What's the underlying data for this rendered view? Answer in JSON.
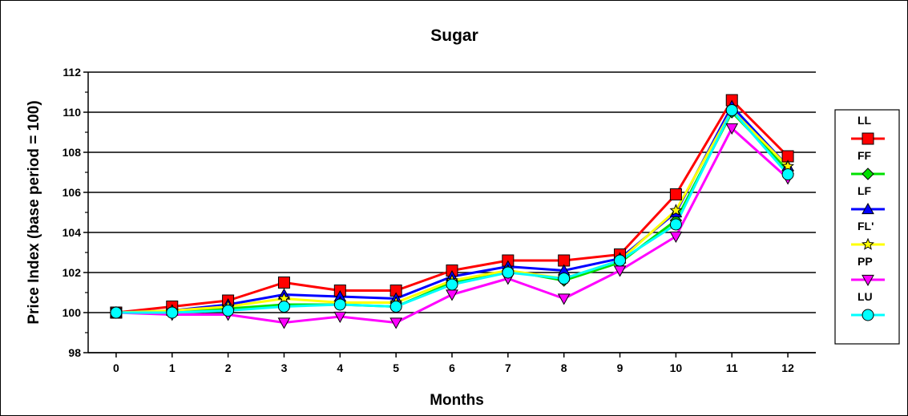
{
  "chart_data": {
    "type": "line",
    "title": "Sugar",
    "xlabel": "Months",
    "ylabel": "Price Index (base period = 100)",
    "x": [
      0,
      1,
      2,
      3,
      4,
      5,
      6,
      7,
      8,
      9,
      10,
      11,
      12
    ],
    "xlim": [
      -0.5,
      12.5
    ],
    "ylim": [
      98,
      112
    ],
    "yticks": [
      98,
      100,
      102,
      104,
      106,
      108,
      110,
      112
    ],
    "grid": "horizontal",
    "legend_position": "right",
    "series": [
      {
        "name": "LL",
        "color": "#ff0000",
        "marker": "square",
        "values": [
          100.0,
          100.3,
          100.6,
          101.5,
          101.1,
          101.1,
          102.1,
          102.6,
          102.6,
          102.9,
          105.9,
          110.6,
          107.8
        ]
      },
      {
        "name": "FF",
        "color": "#00e000",
        "marker": "diamond",
        "values": [
          100.0,
          100.0,
          100.2,
          100.4,
          100.4,
          100.3,
          101.5,
          102.1,
          101.6,
          102.5,
          104.6,
          110.0,
          107.1
        ]
      },
      {
        "name": "LF",
        "color": "#0000ff",
        "marker": "triangle-up",
        "values": [
          100.0,
          100.1,
          100.4,
          100.9,
          100.8,
          100.7,
          101.8,
          102.3,
          102.1,
          102.7,
          105.0,
          110.3,
          107.3
        ]
      },
      {
        "name": "FL'",
        "color": "#ffff00",
        "marker": "star",
        "values": [
          100.0,
          100.1,
          100.3,
          100.7,
          100.5,
          100.5,
          101.6,
          102.1,
          101.7,
          102.6,
          105.1,
          110.1,
          107.3
        ]
      },
      {
        "name": "PP",
        "color": "#ff00ff",
        "marker": "triangle-down",
        "values": [
          100.0,
          99.9,
          99.9,
          99.5,
          99.8,
          99.5,
          100.9,
          101.7,
          100.7,
          102.1,
          103.8,
          109.2,
          106.7
        ]
      },
      {
        "name": "LU",
        "color": "#00ffff",
        "marker": "circle",
        "values": [
          100.0,
          100.0,
          100.1,
          100.3,
          100.4,
          100.3,
          101.4,
          102.0,
          101.7,
          102.6,
          104.4,
          110.1,
          106.9
        ]
      }
    ]
  }
}
